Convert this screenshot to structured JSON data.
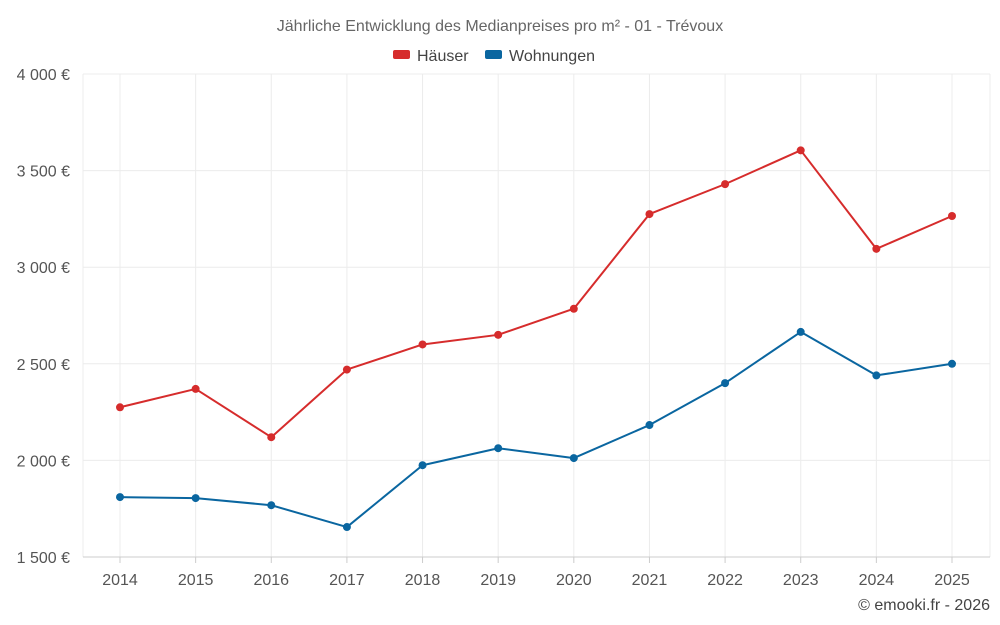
{
  "chart_data": {
    "type": "line",
    "title": "Jährliche Entwicklung des Medianpreises pro m² - 01 - Trévoux",
    "xlabel": "",
    "ylabel": "",
    "categories": [
      "2014",
      "2015",
      "2016",
      "2017",
      "2018",
      "2019",
      "2020",
      "2021",
      "2022",
      "2023",
      "2024",
      "2025"
    ],
    "ylim": [
      1500,
      4000
    ],
    "yticks": [
      1500,
      2000,
      2500,
      3000,
      3500,
      4000
    ],
    "ytick_labels": [
      "1 500 €",
      "2 000 €",
      "2 500 €",
      "3 000 €",
      "3 500 €",
      "4 000 €"
    ],
    "grid": true,
    "legend_position": "top-center",
    "series": [
      {
        "name": "Häuser",
        "color": "#d62c2c",
        "values": [
          2275,
          2370,
          2120,
          2470,
          2600,
          2650,
          2785,
          3275,
          3430,
          3605,
          3095,
          3265
        ]
      },
      {
        "name": "Wohnungen",
        "color": "#0a66a0",
        "values": [
          1810,
          1805,
          1768,
          1655,
          1975,
          2063,
          2012,
          2183,
          2400,
          2665,
          2440,
          2500
        ]
      }
    ],
    "credit": "© emooki.fr - 2026"
  }
}
